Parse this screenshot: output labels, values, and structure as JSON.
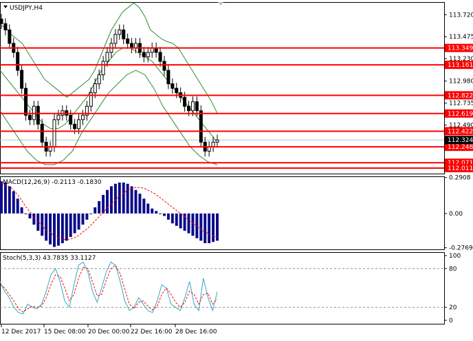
{
  "chart_data": [
    {
      "type": "candlestick",
      "title": "USDJPY,H4",
      "ylim": [
        111.95,
        113.86
      ],
      "price_ticks": [
        "113.720",
        "113.475",
        "113.230",
        "112.980",
        "112.735",
        "112.490"
      ],
      "levels": [
        {
          "label": "113.349",
          "value": 113.349
        },
        {
          "label": "113.161",
          "value": 113.161
        },
        {
          "label": "112.822",
          "value": 112.822
        },
        {
          "label": "112.619",
          "value": 112.619
        },
        {
          "label": "112.422",
          "value": 112.422
        },
        {
          "label": "112.248",
          "value": 112.248
        },
        {
          "label": "112.071",
          "value": 112.071
        },
        {
          "label": "112.011",
          "value": 112.011
        }
      ],
      "current_price": {
        "label": "112.324",
        "value": 112.324
      },
      "line_color": "#ff0000",
      "band_color": "#2e8b2e",
      "candle_closes": [
        113.62,
        113.55,
        113.4,
        113.3,
        113.1,
        112.9,
        112.6,
        112.55,
        112.7,
        112.5,
        112.3,
        112.2,
        112.25,
        112.55,
        112.6,
        112.65,
        112.6,
        112.5,
        112.45,
        112.55,
        112.6,
        112.7,
        112.85,
        112.95,
        113.05,
        113.2,
        113.3,
        113.4,
        113.5,
        113.55,
        113.45,
        113.4,
        113.35,
        113.4,
        113.3,
        113.25,
        113.3,
        113.35,
        113.3,
        113.2,
        113.1,
        112.95,
        112.9,
        112.85,
        112.8,
        112.7,
        112.65,
        112.75,
        112.65,
        112.3,
        112.2,
        112.25,
        112.3,
        112.324
      ],
      "band_upper": [
        113.6,
        113.58,
        113.5,
        113.45,
        113.4,
        113.3,
        113.2,
        113.1,
        113.0,
        112.95,
        112.9,
        112.85,
        112.8,
        112.85,
        112.9,
        112.95,
        113.0,
        113.1,
        113.25,
        113.4,
        113.55,
        113.65,
        113.75,
        113.8,
        113.85,
        113.8,
        113.7,
        113.55,
        113.5,
        113.45,
        113.42,
        113.4,
        113.35,
        113.25,
        113.15,
        113.05,
        112.95,
        112.85,
        112.75,
        112.62
      ],
      "band_middle": [
        113.1,
        113.0,
        112.9,
        112.8,
        112.7,
        112.6,
        112.5,
        112.45,
        112.45,
        112.5,
        112.6,
        112.7,
        112.8,
        112.95,
        113.1,
        113.2,
        113.3,
        113.35,
        113.35,
        113.3,
        113.25,
        113.2,
        113.1,
        113.0,
        112.9,
        112.8,
        112.7,
        112.6,
        112.5,
        112.4,
        112.3
      ],
      "band_lower": [
        112.65,
        112.5,
        112.35,
        112.2,
        112.1,
        112.05,
        112.05,
        112.1,
        112.2,
        112.4,
        112.55,
        112.7,
        112.85,
        112.95,
        113.05,
        113.1,
        113.05,
        112.9,
        112.7,
        112.55,
        112.4,
        112.25,
        112.15,
        112.08,
        112.05
      ]
    },
    {
      "type": "bar",
      "title": "MACD(12,26,9) -0.2113 -0.1830",
      "ylim": [
        -0.29,
        0.3
      ],
      "tick_labels": [
        "0.2908",
        "0.00",
        "-0.2769"
      ],
      "histogram": [
        0.26,
        0.25,
        0.22,
        0.18,
        0.12,
        0.05,
        0.0,
        -0.04,
        -0.09,
        -0.14,
        -0.18,
        -0.22,
        -0.25,
        -0.27,
        -0.26,
        -0.24,
        -0.22,
        -0.19,
        -0.16,
        -0.13,
        -0.09,
        -0.05,
        0.0,
        0.05,
        0.1,
        0.15,
        0.19,
        0.22,
        0.24,
        0.25,
        0.25,
        0.24,
        0.22,
        0.19,
        0.16,
        0.12,
        0.08,
        0.04,
        0.02,
        0.0,
        -0.02,
        -0.05,
        -0.08,
        -0.1,
        -0.12,
        -0.14,
        -0.16,
        -0.18,
        -0.2,
        -0.22,
        -0.24,
        -0.24,
        -0.23,
        -0.22
      ],
      "signal": [
        0.24,
        0.23,
        0.21,
        0.17,
        0.12,
        0.06,
        0.01,
        -0.04,
        -0.08,
        -0.12,
        -0.15,
        -0.18,
        -0.2,
        -0.21,
        -0.21,
        -0.2,
        -0.18,
        -0.15,
        -0.12,
        -0.08,
        -0.04,
        0.0,
        0.04,
        0.08,
        0.12,
        0.15,
        0.18,
        0.2,
        0.21,
        0.21,
        0.2,
        0.18,
        0.16,
        0.13,
        0.1,
        0.07,
        0.04,
        0.01,
        -0.02,
        -0.05,
        -0.08,
        -0.11,
        -0.14,
        -0.16,
        -0.18,
        -0.19
      ]
    },
    {
      "type": "line",
      "title": "Stoch(5,3,3) 43.7835 33.1127",
      "ylim": [
        0,
        100
      ],
      "tick_labels": [
        "100",
        "80",
        "20",
        "0"
      ],
      "dashed_levels": [
        80,
        20
      ],
      "x_ticks": [
        "12 Dec 2017",
        "15 Dec 08:00",
        "20 Dec 00:00",
        "22 Dec 16:00",
        "28 Dec 16:00"
      ],
      "series": [
        {
          "color": "#2fa8c8",
          "values": [
            60,
            45,
            35,
            20,
            12,
            10,
            25,
            20,
            18,
            25,
            45,
            70,
            80,
            60,
            30,
            20,
            55,
            85,
            90,
            75,
            45,
            28,
            50,
            75,
            90,
            85,
            60,
            30,
            15,
            20,
            35,
            25,
            15,
            12,
            30,
            55,
            50,
            25,
            20,
            15,
            35,
            60,
            25,
            15,
            65,
            35,
            15,
            44
          ]
        },
        {
          "color": "#ff0000",
          "values": [
            55,
            50,
            40,
            30,
            18,
            13,
            18,
            22,
            20,
            22,
            35,
            55,
            70,
            68,
            50,
            30,
            40,
            65,
            82,
            80,
            60,
            38,
            40,
            62,
            80,
            85,
            72,
            48,
            25,
            18,
            28,
            30,
            22,
            16,
            22,
            40,
            50,
            40,
            28,
            20,
            28,
            45,
            40,
            25,
            40,
            42,
            25,
            33
          ]
        }
      ]
    }
  ]
}
